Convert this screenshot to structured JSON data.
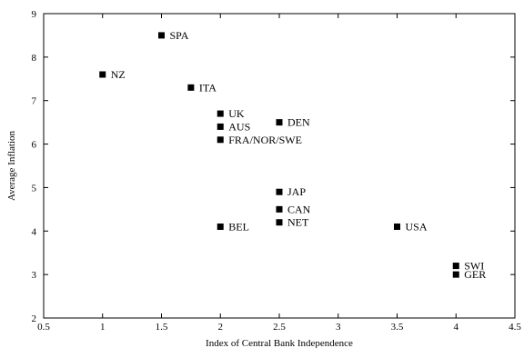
{
  "chart_data": {
    "type": "scatter",
    "xlabel": "Index of Central Bank Independence",
    "ylabel": "Average Inflation",
    "xlim": [
      0.5,
      4.5
    ],
    "ylim": [
      2,
      9
    ],
    "xticks": [
      "0.5",
      "1",
      "1.5",
      "2",
      "2.5",
      "3",
      "3.5",
      "4",
      "4.5"
    ],
    "yticks": [
      "2",
      "3",
      "4",
      "5",
      "6",
      "7",
      "8",
      "9"
    ],
    "grid": false,
    "points": [
      {
        "label": "SPA",
        "x": 1.5,
        "y": 8.5
      },
      {
        "label": "NZ",
        "x": 1.0,
        "y": 7.6
      },
      {
        "label": "ITA",
        "x": 1.75,
        "y": 7.3
      },
      {
        "label": "UK",
        "x": 2.0,
        "y": 6.7
      },
      {
        "label": "AUS",
        "x": 2.0,
        "y": 6.4
      },
      {
        "label": "FRA/NOR/SWE",
        "x": 2.0,
        "y": 6.1
      },
      {
        "label": "DEN",
        "x": 2.5,
        "y": 6.5
      },
      {
        "label": "JAP",
        "x": 2.5,
        "y": 4.9
      },
      {
        "label": "CAN",
        "x": 2.5,
        "y": 4.5
      },
      {
        "label": "NET",
        "x": 2.5,
        "y": 4.2
      },
      {
        "label": "BEL",
        "x": 2.0,
        "y": 4.1
      },
      {
        "label": "USA",
        "x": 3.5,
        "y": 4.1
      },
      {
        "label": "SWI",
        "x": 4.0,
        "y": 3.2
      },
      {
        "label": "GER",
        "x": 4.0,
        "y": 3.0
      }
    ]
  }
}
